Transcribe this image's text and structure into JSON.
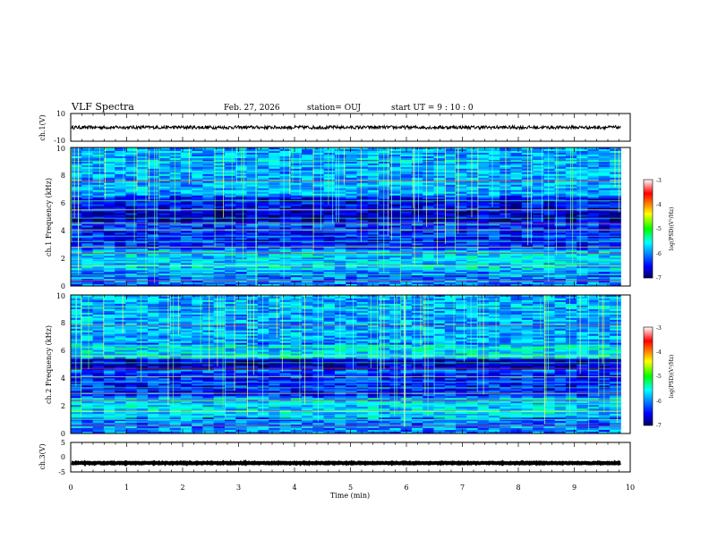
{
  "header": {
    "title": "VLF Spectra",
    "date": "Feb. 27, 2026",
    "station": "station= OUJ",
    "start": "start  UT  =   9  : 10 : 0"
  },
  "chart_data": [
    {
      "type": "line",
      "name": "ch1-waveform",
      "ylabel": "ch.1(V)",
      "ylim": [
        -10,
        10
      ],
      "y_tick_labels": [
        "10",
        "-10"
      ],
      "xlim": [
        0,
        10
      ],
      "data_end_min": 9.83,
      "level": 0.0,
      "amplitude": 1.2
    },
    {
      "type": "heatmap",
      "name": "ch1-spectrogram",
      "ylabel": "ch.1 Frequency (kHz)",
      "ylim": [
        0,
        10
      ],
      "y_tick_labels": [
        "0",
        "2",
        "4",
        "6",
        "8",
        "10"
      ],
      "xlim": [
        0,
        10
      ],
      "data_end_min": 9.83,
      "colorbar": {
        "label": "log(PSD)(V²/Hz)",
        "range": [
          -7,
          -3
        ],
        "tick_labels": [
          "-3",
          "-4",
          "-5",
          "-6",
          "-7"
        ]
      }
    },
    {
      "type": "heatmap",
      "name": "ch2-spectrogram",
      "ylabel": "ch.2 Frequency (kHz)",
      "ylim": [
        0,
        10
      ],
      "y_tick_labels": [
        "0",
        "2",
        "4",
        "6",
        "8",
        "10"
      ],
      "xlim": [
        0,
        10
      ],
      "data_end_min": 9.83,
      "colorbar": {
        "label": "log(PSD)(V²/Hz)",
        "range": [
          -7,
          -3
        ],
        "tick_labels": [
          "-3",
          "-4",
          "-5",
          "-6",
          "-7"
        ]
      }
    },
    {
      "type": "line",
      "name": "ch3-waveform",
      "ylabel": "ch.3(V)",
      "ylim": [
        -5,
        5
      ],
      "y_tick_labels": [
        "5",
        "0",
        "-5"
      ],
      "xlim": [
        0,
        10
      ],
      "data_end_min": 9.83,
      "level": -2.0,
      "amplitude": 0.15
    }
  ],
  "x_axis": {
    "xlabel": "Time  (min)",
    "tick_labels": [
      "0",
      "1",
      "2",
      "3",
      "4",
      "5",
      "6",
      "7",
      "8",
      "9",
      "10"
    ]
  }
}
